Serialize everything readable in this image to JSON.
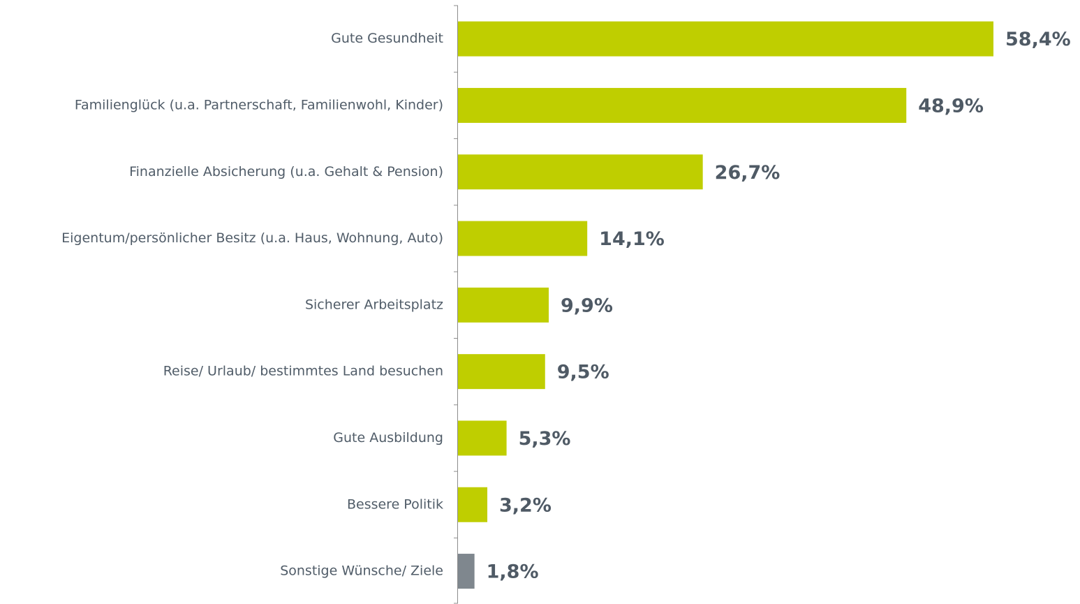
{
  "chart_data": {
    "type": "bar",
    "orientation": "horizontal",
    "categories": [
      "Gute Gesundheit",
      "Familienglück (u.a. Partnerschaft, Familienwohl, Kinder)",
      "Finanzielle Absicherung (u.a. Gehalt & Pension)",
      "Eigentum/persönlicher Besitz (u.a. Haus, Wohnung, Auto)",
      "Sicherer Arbeitsplatz",
      "Reise/ Urlaub/ bestimmtes Land besuchen",
      "Gute Ausbildung",
      "Bessere Politik",
      "Sonstige Wünsche/ Ziele"
    ],
    "values": [
      58.4,
      48.9,
      26.7,
      14.1,
      9.9,
      9.5,
      5.3,
      3.2,
      1.8
    ],
    "value_labels": [
      "58,4%",
      "48,9%",
      "26,7%",
      "14,1%",
      "9,9%",
      "9,5%",
      "5,3%",
      "3,2%",
      "1,8%"
    ],
    "colors": [
      "#bfce00",
      "#bfce00",
      "#bfce00",
      "#bfce00",
      "#bfce00",
      "#bfce00",
      "#bfce00",
      "#bfce00",
      "#7f878e"
    ]
  }
}
